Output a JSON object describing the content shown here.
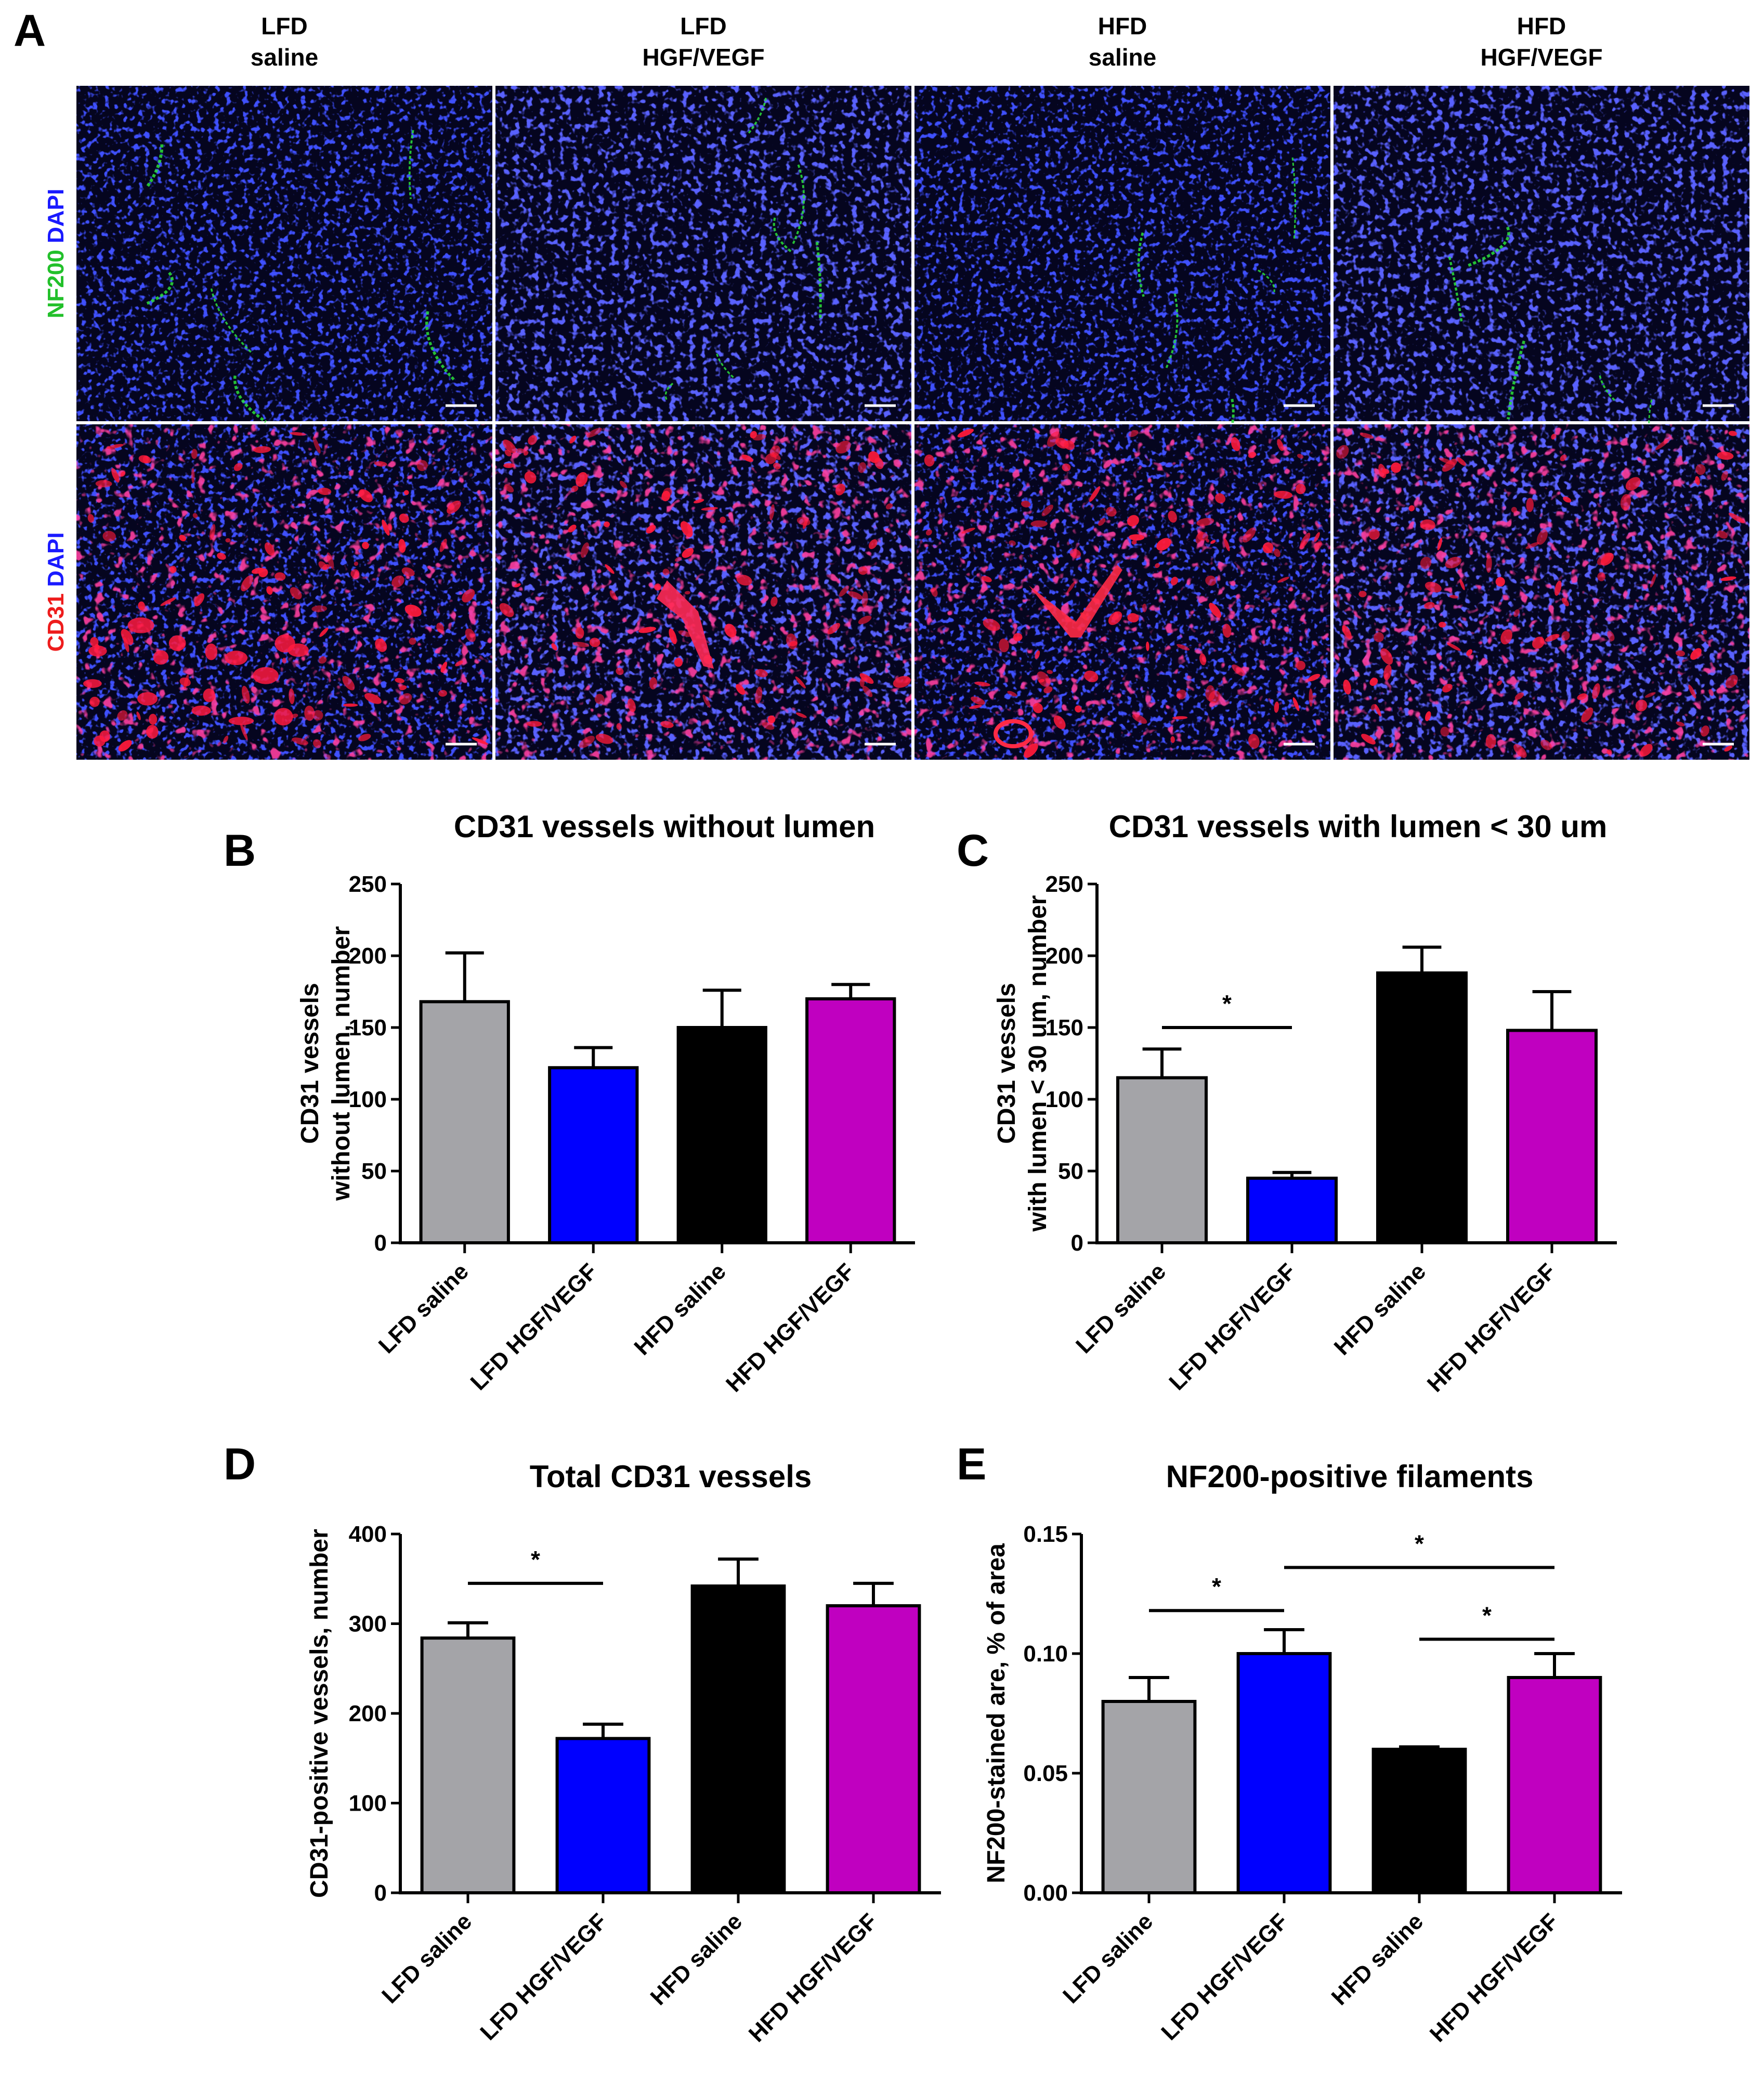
{
  "panel_a": {
    "letter": "A",
    "columns": [
      {
        "line1": "LFD",
        "line2": "saline"
      },
      {
        "line1": "LFD",
        "line2": "HGF/VEGF"
      },
      {
        "line1": "HFD",
        "line2": "saline"
      },
      {
        "line1": "HFD",
        "line2": "HGF/VEGF"
      }
    ],
    "rows": [
      {
        "stains": [
          {
            "text": "NF200",
            "color": "#22c02a"
          },
          {
            "text": "DAPI",
            "color": "#1a1aff"
          }
        ]
      },
      {
        "stains": [
          {
            "text": "CD31",
            "color": "#ee1c1c"
          },
          {
            "text": "DAPI",
            "color": "#1a1aff"
          }
        ]
      }
    ]
  },
  "chart_data": [
    {
      "letter": "B",
      "type": "bar",
      "title": "CD31 vessels without lumen",
      "ylabel_lines": [
        "CD31 vessels",
        "without lumen, number"
      ],
      "categories": [
        "LFD saline",
        "LFD HGF/VEGF",
        "HFD saline",
        "HFD HGF/VEGF"
      ],
      "values": [
        168,
        122,
        150,
        170
      ],
      "errors": [
        34,
        14,
        26,
        10
      ],
      "colors": [
        "#a4a4a8",
        "#0000ff",
        "#000000",
        "#c000c0"
      ],
      "ylim": [
        0,
        250
      ],
      "yticks": [
        "0",
        "50",
        "100",
        "150",
        "200",
        "250"
      ],
      "significance": []
    },
    {
      "letter": "C",
      "type": "bar",
      "title": "CD31 vessels with lumen < 30 um",
      "ylabel_lines": [
        "CD31 vessels",
        "with lumen < 30 um, number"
      ],
      "categories": [
        "LFD saline",
        "LFD HGF/VEGF",
        "HFD saline",
        "HFD HGF/VEGF"
      ],
      "values": [
        115,
        45,
        188,
        148
      ],
      "errors": [
        20,
        4,
        18,
        27
      ],
      "colors": [
        "#a4a4a8",
        "#0000ff",
        "#000000",
        "#c000c0"
      ],
      "ylim": [
        0,
        250
      ],
      "yticks": [
        "0",
        "50",
        "100",
        "150",
        "200",
        "250"
      ],
      "significance": [
        {
          "from": 0,
          "to": 1,
          "y": 150,
          "text": "*"
        }
      ]
    },
    {
      "letter": "D",
      "type": "bar",
      "title": "Total CD31 vessels",
      "ylabel_lines": [
        "CD31-positive vessels, number"
      ],
      "categories": [
        "LFD saline",
        "LFD HGF/VEGF",
        "HFD saline",
        "HFD HGF/VEGF"
      ],
      "values": [
        284,
        172,
        342,
        320
      ],
      "errors": [
        17,
        16,
        30,
        25
      ],
      "colors": [
        "#a4a4a8",
        "#0000ff",
        "#000000",
        "#c000c0"
      ],
      "ylim": [
        0,
        400
      ],
      "yticks": [
        "0",
        "100",
        "200",
        "300",
        "400"
      ],
      "significance": [
        {
          "from": 0,
          "to": 1,
          "y": 345,
          "text": "*"
        }
      ]
    },
    {
      "letter": "E",
      "type": "bar",
      "title": "NF200-positive filaments",
      "ylabel_lines": [
        "NF200-stained are, % of area"
      ],
      "categories": [
        "LFD saline",
        "LFD HGF/VEGF",
        "HFD saline",
        "HFD HGF/VEGF"
      ],
      "values": [
        0.08,
        0.1,
        0.06,
        0.09
      ],
      "errors": [
        0.01,
        0.01,
        0.001,
        0.01
      ],
      "colors": [
        "#a4a4a8",
        "#0000ff",
        "#000000",
        "#c000c0"
      ],
      "ylim": [
        0,
        0.15
      ],
      "yticks": [
        "0.00",
        "0.05",
        "0.10",
        "0.15"
      ],
      "significance": [
        {
          "from": 0,
          "to": 1,
          "y": 0.118,
          "text": "*"
        },
        {
          "from": 1,
          "to": 3,
          "y": 0.136,
          "text": "*"
        },
        {
          "from": 2,
          "to": 3,
          "y": 0.106,
          "text": "*"
        }
      ]
    }
  ]
}
